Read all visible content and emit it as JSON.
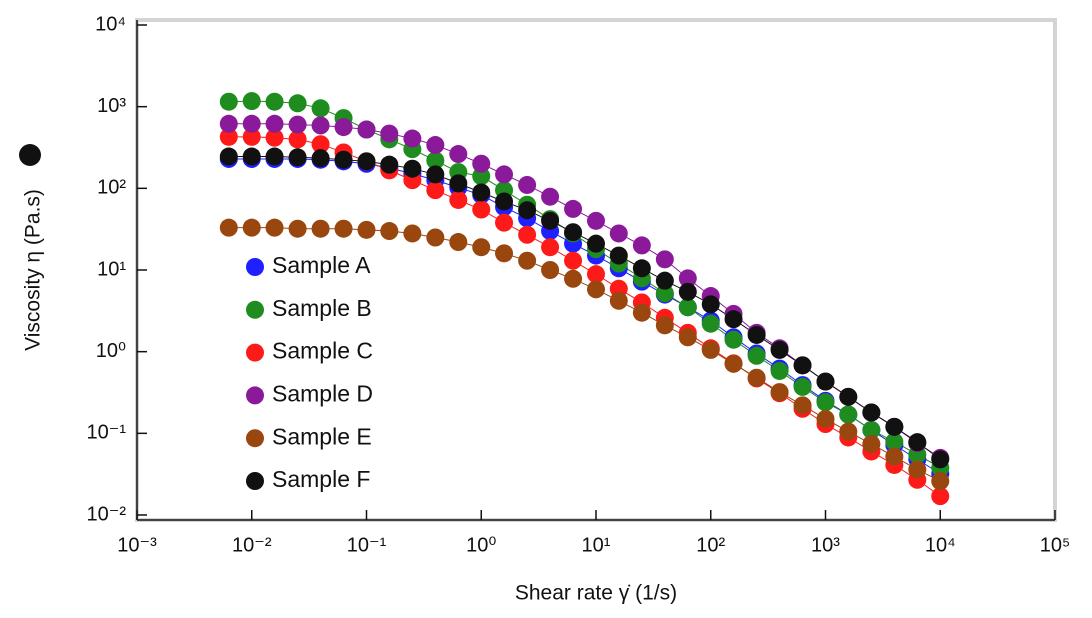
{
  "chart_data": {
    "type": "scatter",
    "xlabel": "Shear rate γ̇  (1/s)",
    "ylabel": "Viscosity η  (Pa.s)",
    "xlog": true,
    "ylog": true,
    "xlim": [
      0.001,
      100000
    ],
    "ylim": [
      0.01,
      10000
    ],
    "xticks": [
      {
        "value": 0.001,
        "label": "10⁻³"
      },
      {
        "value": 0.01,
        "label": "10⁻²"
      },
      {
        "value": 0.1,
        "label": "10⁻¹"
      },
      {
        "value": 1,
        "label": "10⁰"
      },
      {
        "value": 10,
        "label": "10¹"
      },
      {
        "value": 100,
        "label": "10²"
      },
      {
        "value": 1000,
        "label": "10³"
      },
      {
        "value": 10000,
        "label": "10⁴"
      },
      {
        "value": 100000,
        "label": "10⁵"
      }
    ],
    "yticks": [
      {
        "value": 0.01,
        "label": "10⁻²"
      },
      {
        "value": 0.1,
        "label": "10⁻¹"
      },
      {
        "value": 1,
        "label": "10⁰"
      },
      {
        "value": 10,
        "label": "10¹"
      },
      {
        "value": 100,
        "label": "10²"
      },
      {
        "value": 1000,
        "label": "10³"
      },
      {
        "value": 10000,
        "label": "10⁴"
      }
    ],
    "legend": "center-left",
    "x": [
      0.00631,
      0.01,
      0.0158,
      0.0251,
      0.0398,
      0.0631,
      0.1,
      0.158,
      0.251,
      0.398,
      0.631,
      1,
      1.58,
      2.51,
      3.98,
      6.31,
      10,
      15.8,
      25.1,
      39.8,
      63.1,
      100,
      158,
      251,
      398,
      631,
      1000,
      1580,
      2510,
      3980,
      6310,
      10000
    ],
    "series": [
      {
        "name": "Sample A",
        "color": "#1f1fff",
        "values": [
          229,
          229,
          229,
          229,
          224,
          214,
          200,
          178,
          151,
          126,
          102,
          83,
          59,
          43,
          30,
          21,
          15,
          10.5,
          7.2,
          5.0,
          3.5,
          2.4,
          1.5,
          0.95,
          0.62,
          0.39,
          0.25,
          0.17,
          0.11,
          0.072,
          0.048,
          0.032
        ]
      },
      {
        "name": "Sample B",
        "color": "#1e8c1e",
        "values": [
          1150,
          1170,
          1150,
          1100,
          955,
          724,
          525,
          398,
          302,
          219,
          158,
          141,
          95,
          63,
          42,
          28,
          18,
          12,
          7.9,
          5.2,
          3.5,
          2.2,
          1.4,
          0.89,
          0.58,
          0.37,
          0.24,
          0.17,
          0.11,
          0.079,
          0.055,
          0.038
        ]
      },
      {
        "name": "Sample C",
        "color": "#ff1a1a",
        "values": [
          427,
          427,
          417,
          398,
          347,
          275,
          214,
          166,
          126,
          95,
          72,
          55,
          38,
          27,
          19,
          13,
          8.9,
          5.9,
          4.0,
          2.6,
          1.7,
          1.1,
          0.72,
          0.47,
          0.31,
          0.2,
          0.13,
          0.089,
          0.06,
          0.041,
          0.027,
          0.017
        ]
      },
      {
        "name": "Sample D",
        "color": "#8a1a9a",
        "values": [
          617,
          617,
          617,
          603,
          589,
          562,
          525,
          468,
          407,
          339,
          263,
          200,
          148,
          110,
          79,
          56,
          40,
          28,
          20,
          13.5,
          7.9,
          4.8,
          2.9,
          1.7,
          1.1,
          0.68,
          0.43,
          0.28,
          0.18,
          0.12,
          0.076,
          0.05
        ]
      },
      {
        "name": "Sample E",
        "color": "#99460f",
        "values": [
          33,
          33,
          33,
          32,
          32,
          32,
          31,
          30,
          28,
          25,
          22,
          19,
          16,
          13,
          10,
          7.8,
          5.8,
          4.2,
          3.0,
          2.1,
          1.5,
          1.05,
          0.71,
          0.48,
          0.32,
          0.22,
          0.15,
          0.105,
          0.074,
          0.052,
          0.036,
          0.026
        ]
      },
      {
        "name": "Sample F",
        "color": "#111111",
        "values": [
          245,
          245,
          245,
          240,
          234,
          224,
          214,
          195,
          174,
          148,
          115,
          89,
          69,
          54,
          40,
          29,
          21,
          15,
          10.5,
          7.4,
          5.4,
          3.8,
          2.5,
          1.6,
          1.05,
          0.68,
          0.43,
          0.28,
          0.18,
          0.12,
          0.078,
          0.048
        ]
      }
    ]
  }
}
